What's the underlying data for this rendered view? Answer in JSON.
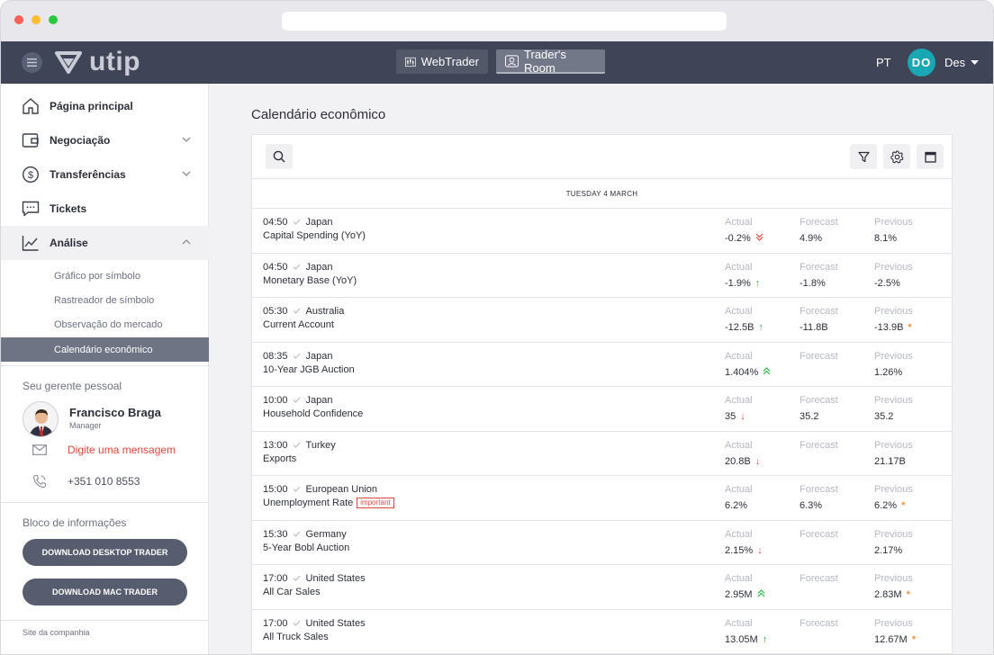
{
  "header": {
    "logo_text": "utip",
    "webtrader_label": "WebTrader",
    "room_label": "Trader's Room",
    "language": "PT",
    "avatar_initials": "DO",
    "user_name": "Des"
  },
  "sidebar": {
    "items": [
      {
        "label": "Página principal",
        "icon": "home-icon"
      },
      {
        "label": "Negociação",
        "icon": "wallet-icon"
      },
      {
        "label": "Transferências",
        "icon": "dollar-icon"
      },
      {
        "label": "Tickets",
        "icon": "chat-icon"
      },
      {
        "label": "Análise",
        "icon": "chart-icon"
      }
    ],
    "sub_items": [
      {
        "label": "Gráfico por símbolo"
      },
      {
        "label": "Rastreador de símbolo"
      },
      {
        "label": "Observação do mercado"
      },
      {
        "label": "Calendário econômico"
      }
    ],
    "manager_section_title": "Seu gerente pessoal",
    "manager_name": "Francisco Braga",
    "manager_role": "Manager",
    "message_link": "Digite uma mensagem",
    "phone": "+351 010 8553",
    "info_section_title": "Bloco de informações",
    "download_desktop": "DOWNLOAD DESKTOP TRADER",
    "download_mac": "DOWNLOAD MAC TRADER",
    "company_link": "Site da companhia"
  },
  "main": {
    "title": "Calendário econômico",
    "day_header": "TUESDAY 4 MARCH",
    "col_actual": "Actual",
    "col_forecast": "Forecast",
    "col_previous": "Previous",
    "events": [
      {
        "time": "04:50",
        "country": "Japan",
        "name": "Capital Spending (YoY)",
        "important": "",
        "actual": "-0.2%",
        "actual_trend": "double-down",
        "forecast": "4.9%",
        "previous": "8.1%",
        "previous_mark": ""
      },
      {
        "time": "04:50",
        "country": "Japan",
        "name": "Monetary Base (YoY)",
        "important": "",
        "actual": "-1.9%",
        "actual_trend": "up",
        "forecast": "-1.8%",
        "previous": "-2.5%",
        "previous_mark": ""
      },
      {
        "time": "05:30",
        "country": "Australia",
        "name": "Current Account",
        "important": "",
        "actual": "-12.5B",
        "actual_trend": "up",
        "forecast": "-11.8B",
        "previous": "-13.9B",
        "previous_mark": "*"
      },
      {
        "time": "08:35",
        "country": "Japan",
        "name": "10-Year JGB Auction",
        "important": "",
        "actual": "1.404%",
        "actual_trend": "double-up",
        "forecast": "",
        "previous": "1.26%",
        "previous_mark": ""
      },
      {
        "time": "10:00",
        "country": "Japan",
        "name": "Household Confidence",
        "important": "",
        "actual": "35",
        "actual_trend": "down",
        "forecast": "35.2",
        "previous": "35.2",
        "previous_mark": ""
      },
      {
        "time": "13:00",
        "country": "Turkey",
        "name": "Exports",
        "important": "",
        "actual": "20.8B",
        "actual_trend": "down",
        "forecast": "",
        "previous": "21.17B",
        "previous_mark": ""
      },
      {
        "time": "15:00",
        "country": "European Union",
        "name": "Unemployment Rate",
        "important": "important",
        "actual": "6.2%",
        "actual_trend": "",
        "forecast": "6.3%",
        "previous": "6.2%",
        "previous_mark": "*"
      },
      {
        "time": "15:30",
        "country": "Germany",
        "name": "5-Year Bobl Auction",
        "important": "",
        "actual": "2.15%",
        "actual_trend": "down",
        "forecast": "",
        "previous": "2.17%",
        "previous_mark": ""
      },
      {
        "time": "17:00",
        "country": "United States",
        "name": "All Car Sales",
        "important": "",
        "actual": "2.95M",
        "actual_trend": "double-up",
        "forecast": "",
        "previous": "2.83M",
        "previous_mark": "*"
      },
      {
        "time": "17:00",
        "country": "United States",
        "name": "All Truck Sales",
        "important": "",
        "actual": "13.05M",
        "actual_trend": "up",
        "forecast": "",
        "previous": "12.67M",
        "previous_mark": "*"
      }
    ]
  },
  "colors": {
    "header_bg": "#3f4456",
    "active_nav": "#6f7485",
    "up": "#2db54a",
    "down": "#e0453f",
    "star": "#f0913a",
    "avatar": "#1aa7b4"
  }
}
